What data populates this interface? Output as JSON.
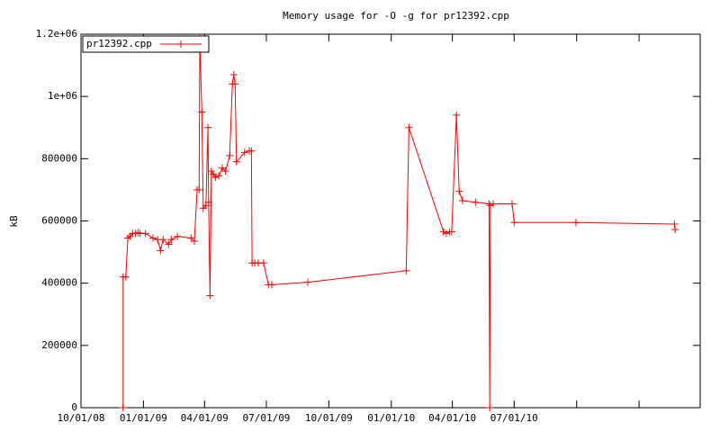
{
  "chart_data": {
    "type": "line",
    "title": "Memory usage for -O -g for pr12392.cpp",
    "y_label": "kB",
    "legend": "upper left",
    "xlim": [
      "2008-10-01",
      "2011-04-01"
    ],
    "xticks": [
      {
        "value": "2008-10-01",
        "label": "10/01/08"
      },
      {
        "value": "2009-01-01",
        "label": "01/01/09"
      },
      {
        "value": "2009-04-01",
        "label": "04/01/09"
      },
      {
        "value": "2009-07-01",
        "label": "07/01/09"
      },
      {
        "value": "2009-10-01",
        "label": "10/01/09"
      },
      {
        "value": "2010-01-01",
        "label": "01/01/10"
      },
      {
        "value": "2010-04-01",
        "label": "04/01/10"
      },
      {
        "value": "2010-07-01",
        "label": "07/01/10"
      },
      {
        "value": "2010-10-01",
        "label": null
      },
      {
        "value": "2011-01-01",
        "label": null
      }
    ],
    "ylim": [
      0,
      1200000
    ],
    "yticks": [
      0,
      200000,
      400000,
      600000,
      800000,
      {
        "value": 1000000,
        "label": "1e+06"
      },
      {
        "value": 1200000,
        "label": "1.2e+06"
      }
    ],
    "x": [
      "2008-12-02",
      "2008-12-02",
      "2008-12-06",
      "2008-12-09",
      "2008-12-12",
      "2008-12-16",
      "2008-12-20",
      "2008-12-24",
      "2008-12-27",
      "2009-01-04",
      "2009-01-15",
      "2009-01-22",
      "2009-01-26",
      "2009-01-30",
      "2009-02-07",
      "2009-02-11",
      "2009-02-20",
      "2009-03-12",
      "2009-03-17",
      "2009-03-21",
      "2009-03-24",
      "2009-03-25",
      "2009-03-28",
      "2009-03-30",
      "2009-04-03",
      "2009-04-06",
      "2009-04-07",
      "2009-04-09",
      "2009-04-11",
      "2009-04-14",
      "2009-04-17",
      "2009-04-22",
      "2009-04-27",
      "2009-05-02",
      "2009-05-08",
      "2009-05-12",
      "2009-05-14",
      "2009-05-16",
      "2009-05-18",
      "2009-05-30",
      "2009-06-06",
      "2009-06-09",
      "2009-06-10",
      "2009-06-14",
      "2009-06-19",
      "2009-06-27",
      "2009-07-04",
      "2009-07-09",
      "2009-08-31",
      "2010-01-23",
      "2010-01-27",
      "2010-03-19",
      "2010-03-23",
      "2010-03-28",
      "2010-03-31",
      "2010-04-07",
      "2010-04-11",
      "2010-04-16",
      "2010-05-05",
      "2010-05-25",
      "2010-05-26",
      "2010-05-27",
      "2010-05-31",
      "2010-06-28",
      "2010-07-01",
      "2010-09-30",
      "2011-02-22",
      "2011-02-23"
    ],
    "series": [
      {
        "name": "pr12392.cpp",
        "color": "#ff0000",
        "values": [
          0,
          420000,
          420000,
          545000,
          550000,
          560000,
          560000,
          562000,
          560000,
          560000,
          545000,
          540000,
          505000,
          540000,
          525000,
          540000,
          550000,
          545000,
          535000,
          700000,
          700000,
          1190000,
          950000,
          640000,
          650000,
          900000,
          660000,
          360000,
          760000,
          750000,
          740000,
          745000,
          770000,
          760000,
          810000,
          1040000,
          1070000,
          1040000,
          790000,
          820000,
          825000,
          825000,
          465000,
          465000,
          465000,
          465000,
          395000,
          395000,
          403000,
          440000,
          900000,
          565000,
          560000,
          565000,
          565000,
          940000,
          695000,
          665000,
          660000,
          655000,
          0,
          650000,
          655000,
          655000,
          595000,
          595000,
          590000,
          572000
        ]
      }
    ]
  }
}
